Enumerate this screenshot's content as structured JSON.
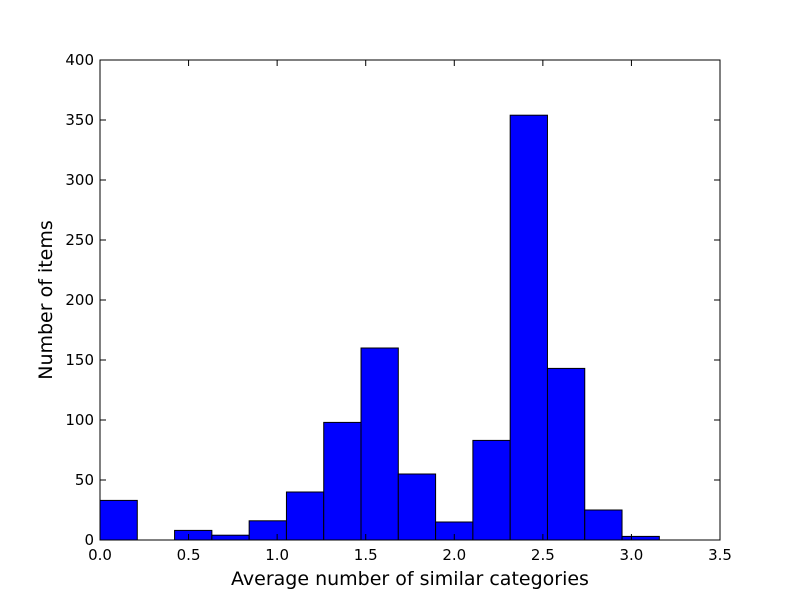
{
  "chart_data": {
    "type": "bar",
    "title": "",
    "xlabel": "Average number of similar categories",
    "ylabel": "Number of items",
    "xlim": [
      0.0,
      3.5
    ],
    "ylim": [
      0,
      400
    ],
    "grid": false,
    "bin_edges": [
      0.0,
      0.2105,
      0.421,
      0.6315,
      0.842,
      1.0525,
      1.263,
      1.4735,
      1.684,
      1.8945,
      2.105,
      2.3155,
      2.526,
      2.7365,
      2.947,
      3.1575
    ],
    "values": [
      33,
      0,
      8,
      4,
      16,
      40,
      98,
      160,
      55,
      15,
      83,
      354,
      143,
      25,
      3
    ],
    "bar_color": "#0000ff",
    "edge_color": "#000000",
    "xticks": [
      {
        "value": 0.0,
        "label": "0.0"
      },
      {
        "value": 0.5,
        "label": "0.5"
      },
      {
        "value": 1.0,
        "label": "1.0"
      },
      {
        "value": 1.5,
        "label": "1.5"
      },
      {
        "value": 2.0,
        "label": "2.0"
      },
      {
        "value": 2.5,
        "label": "2.5"
      },
      {
        "value": 3.0,
        "label": "3.0"
      },
      {
        "value": 3.5,
        "label": "3.5"
      }
    ],
    "yticks": [
      {
        "value": 0,
        "label": "0"
      },
      {
        "value": 50,
        "label": "50"
      },
      {
        "value": 100,
        "label": "100"
      },
      {
        "value": 150,
        "label": "150"
      },
      {
        "value": 200,
        "label": "200"
      },
      {
        "value": 250,
        "label": "250"
      },
      {
        "value": 300,
        "label": "300"
      },
      {
        "value": 350,
        "label": "350"
      },
      {
        "value": 400,
        "label": "400"
      }
    ]
  }
}
